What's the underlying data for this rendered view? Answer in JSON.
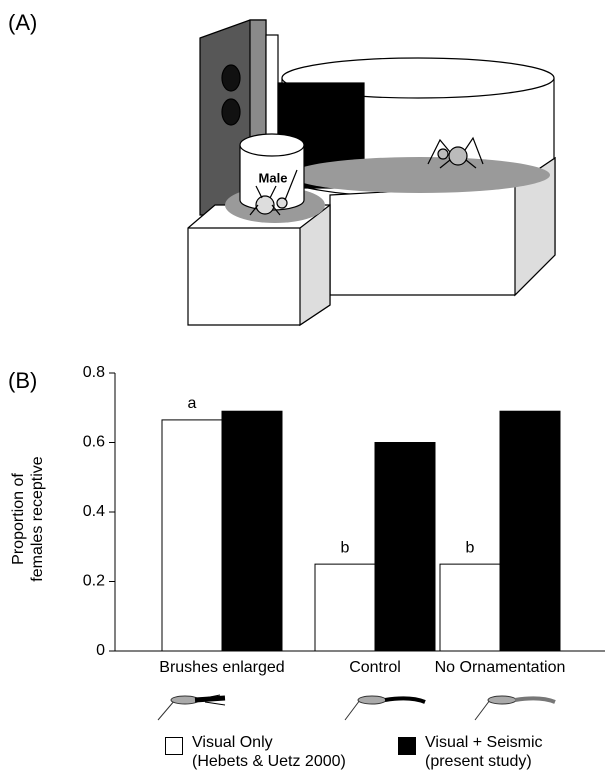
{
  "panel_labels": [
    "(A)",
    "(B)"
  ],
  "diagram": {
    "label": "Male"
  },
  "chart_data": {
    "type": "bar",
    "y_label": "Proportion of\nfemales receptive",
    "categories": [
      "Brushes enlarged",
      "Control",
      "No Ornamentation"
    ],
    "series": [
      {
        "name": "Visual Only\n(Hebets & Uetz 2000)",
        "color": "#ffffff",
        "values": [
          0.665,
          0.25,
          0.25
        ],
        "annotations": [
          "a",
          "b",
          "b"
        ]
      },
      {
        "name": "Visual + Seismic\n(present study)",
        "color": "#000000",
        "values": [
          0.69,
          0.6,
          0.69
        ]
      }
    ],
    "ylim": [
      0,
      0.8
    ],
    "yticks": [
      0,
      0.2,
      0.4,
      0.6,
      0.8
    ],
    "grid": false
  }
}
